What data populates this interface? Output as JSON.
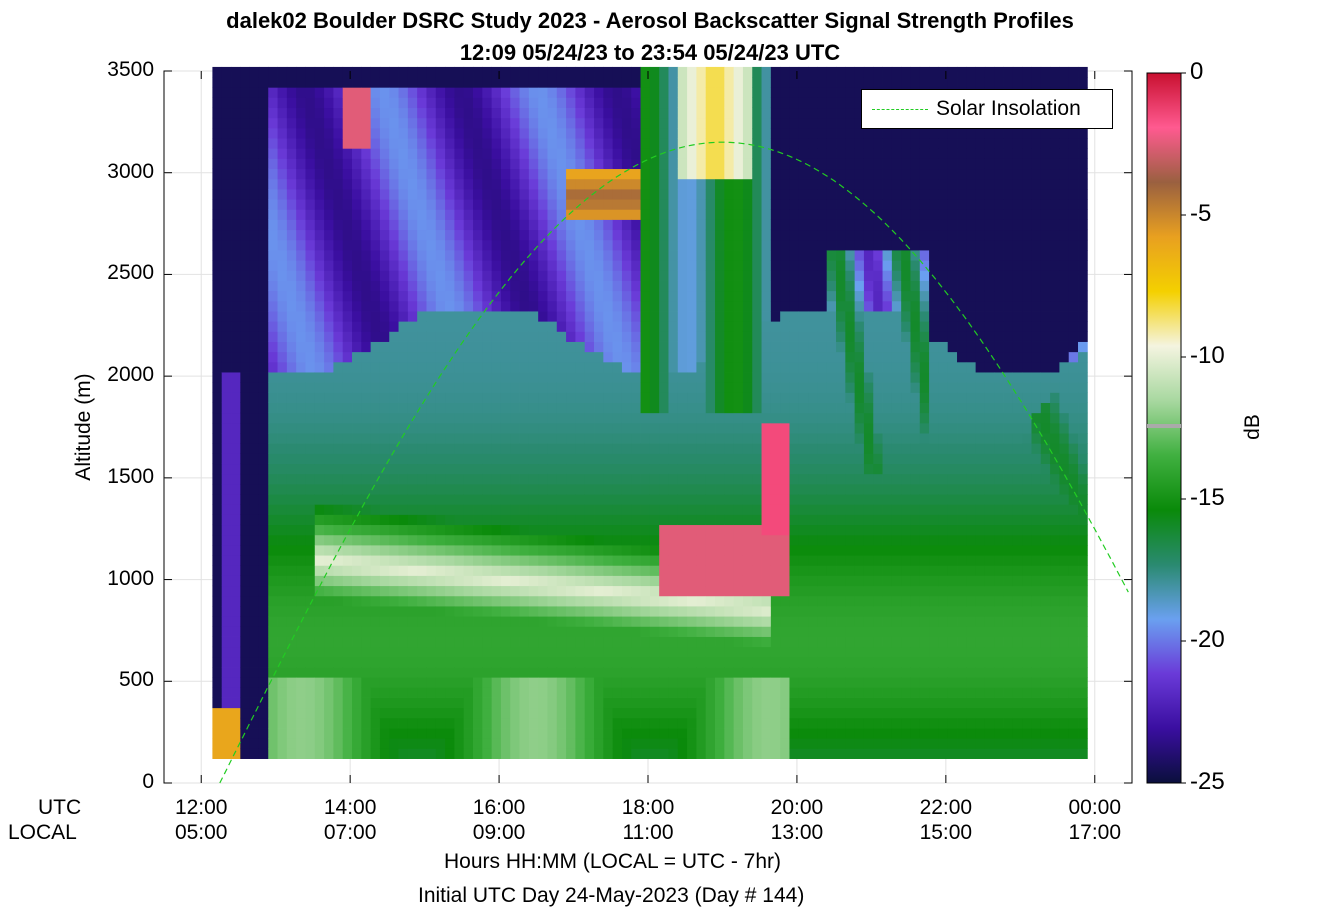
{
  "title_line1": "dalek02 Boulder DSRC Study 2023 - Aerosol Backscatter Signal Strength Profiles",
  "title_line2": "12:09 05/24/23 to 23:54 05/24/23  UTC",
  "ylabel": "Altitude (m)",
  "xlabel": "Hours HH:MM  (LOCAL = UTC - 7hr)",
  "xlabel2": "Initial UTC Day 24-May-2023 (Day # 144)",
  "row_labels": {
    "utc": "UTC",
    "local": "LOCAL"
  },
  "legend_label": "Solar Insolation",
  "colorbar": {
    "label": "dB",
    "range": [
      -25,
      0
    ],
    "ticks": [
      "0",
      "-5",
      "-10",
      "-15",
      "-20",
      "-25"
    ],
    "colors": [
      "#0a0f3c",
      "#3a0ea0",
      "#6a3ad8",
      "#6aa0f0",
      "#2a8a70",
      "#0a8a0a",
      "#40b040",
      "#a8d8a0",
      "#f4f4e0",
      "#f4d000",
      "#e8a020",
      "#9a6040",
      "#ff5a90",
      "#c81030"
    ]
  },
  "chart_data": {
    "type": "heatmap",
    "x_ticks_utc": [
      "12:00",
      "14:00",
      "16:00",
      "18:00",
      "20:00",
      "22:00",
      "00:00"
    ],
    "x_ticks_local": [
      "05:00",
      "07:00",
      "09:00",
      "11:00",
      "13:00",
      "15:00",
      "17:00"
    ],
    "x_range_hours_utc": [
      11.5,
      24.5
    ],
    "y_ticks": [
      "0",
      "500",
      "1000",
      "1500",
      "2000",
      "2500",
      "3000",
      "3500"
    ],
    "ylim": [
      0,
      3500
    ],
    "time_span_utc": [
      "12:09",
      "23:54"
    ],
    "altitude_span_m": [
      120,
      3500
    ],
    "features": [
      {
        "name": "aerosol layer",
        "hours": [
          13.9,
          19.5
        ],
        "alt_m": [
          600,
          1300
        ],
        "db": -10
      },
      {
        "name": "cloud",
        "hours": [
          18.1,
          19.9
        ],
        "alt_m": [
          900,
          1750
        ],
        "db": -2
      },
      {
        "name": "cloud",
        "hours": [
          16.9,
          17.9
        ],
        "alt_m": [
          2800,
          3000
        ],
        "db": -3
      },
      {
        "name": "cloud",
        "hours": [
          18.4,
          19.4
        ],
        "alt_m": [
          3000,
          3500
        ],
        "db": -6
      },
      {
        "name": "cloud",
        "hours": [
          13.9,
          14.3
        ],
        "alt_m": [
          3100,
          3400
        ],
        "db": -2
      }
    ],
    "solar_insolation": {
      "peak_hour_utc": 19.0,
      "peak_altitude_m": 3150,
      "zero_hours_utc": [
        11.5,
        25.0
      ]
    },
    "grid": true,
    "legend_position": "top-right"
  }
}
